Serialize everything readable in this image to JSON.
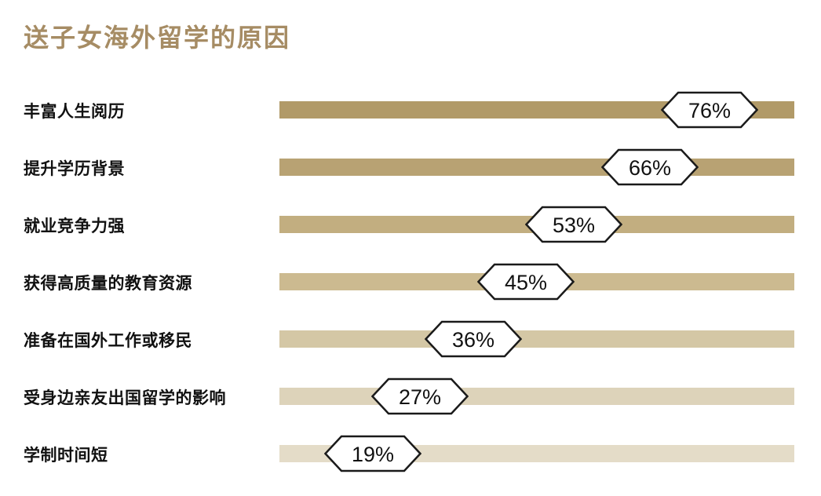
{
  "chart_data": {
    "type": "bar",
    "orientation": "horizontal",
    "title": "送子女海外留学的原因",
    "categories": [
      "丰富人生阅历",
      "提升学历背景",
      "就业竞争力强",
      "获得高质量的教育资源",
      "准备在国外工作或移民",
      "受身边亲友出国留学的影响",
      "学制时间短"
    ],
    "values": [
      76,
      66,
      53,
      45,
      36,
      27,
      19
    ],
    "unit": "%",
    "value_label_style": "white-hexagon-badge-on-bar",
    "bar_colors": [
      "#b19a68",
      "#b8a273",
      "#c2ae80",
      "#ccba90",
      "#d4c7a5",
      "#ddd3ba",
      "#e4dcc8"
    ],
    "title_color": "#a68c64",
    "label_color": "#111111",
    "badge_border_color": "#1a1a1a",
    "xlim": [
      0,
      100
    ],
    "grid": false,
    "legend": false,
    "xlabel": "",
    "ylabel": ""
  }
}
